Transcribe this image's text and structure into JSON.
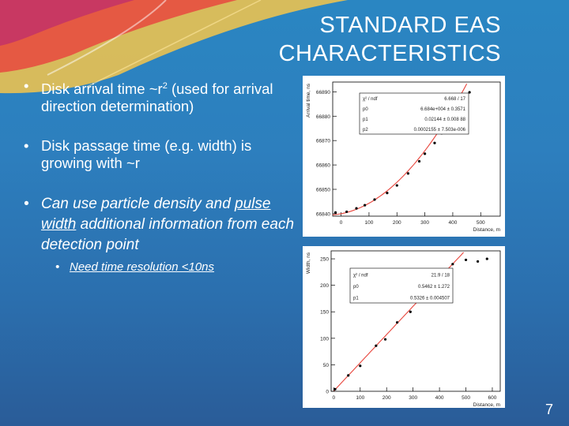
{
  "slide": {
    "title_line1": "STANDARD EAS",
    "title_line2": "CHARACTERISTICS",
    "bullet1_a": "Disk arrival time ~r",
    "bullet1_sup": "2",
    "bullet1_b": " (used for arrival direction determination)",
    "bullet2": "Disk passage time (e.g. width) is growing with ~r",
    "bullet3_a": "Can use particle density and ",
    "bullet3_u": "pulse width",
    "bullet3_b": " additional information from each detection point",
    "bullet4": "Need time resolution <10ns",
    "bullet_symbol": "•",
    "page_number": "7"
  },
  "colors": {
    "title": "#ffffff",
    "text": "#ffffff",
    "background_top": "#2a86c2",
    "background_bottom": "#2a5c98",
    "fit_line": "#e8453c",
    "points": "#000000"
  },
  "chart_data": [
    {
      "type": "scatter",
      "ylabel": "Arrival time, ns",
      "xlabel": "Distance, m",
      "xlim": [
        -30,
        570
      ],
      "ylim": [
        66839,
        66894
      ],
      "x_ticks": [
        0,
        100,
        200,
        300,
        400,
        500
      ],
      "x_tick_labels": [
        "0",
        "100",
        "200",
        "300",
        "400",
        "500"
      ],
      "y_ticks": [
        66840,
        66850,
        66860,
        66870,
        66880,
        66890
      ],
      "y_tick_labels": [
        "66840",
        "66850",
        "66860",
        "66870",
        "66880",
        "66890"
      ],
      "stats_box": [
        {
          "name": "χ² / ndf",
          "value": "6.668 / 17"
        },
        {
          "name": "p0",
          "value": "6.684e+004 ± 0.3571"
        },
        {
          "name": "p1",
          "value": "0.02144 ± 0.008 88"
        },
        {
          "name": "p2",
          "value": "0.0002155 ± 7.503e-006"
        }
      ],
      "fit": {
        "p0": 66840,
        "p1": 0.02144,
        "p2": 0.0002155
      },
      "series": [
        {
          "x": [
            -20,
            20,
            55,
            85,
            120,
            165,
            200,
            240,
            280,
            300,
            335,
            360,
            390,
            430,
            460
          ],
          "y": [
            66840.5,
            66840.8,
            66842.2,
            66843.5,
            66845.8,
            66848.5,
            66851.6,
            66856.5,
            66861.5,
            66864.6,
            66869,
            66873,
            66878,
            66883.5,
            66889.8
          ]
        }
      ]
    },
    {
      "type": "scatter",
      "ylabel": "Width, ns",
      "xlabel": "Distance, m",
      "xlim": [
        -10,
        630
      ],
      "ylim": [
        0,
        265
      ],
      "x_ticks": [
        0,
        100,
        200,
        300,
        400,
        500,
        600
      ],
      "x_tick_labels": [
        "0",
        "100",
        "200",
        "300",
        "400",
        "500",
        "600"
      ],
      "y_ticks": [
        0,
        50,
        100,
        150,
        200,
        250
      ],
      "y_tick_labels": [
        "0",
        "50",
        "100",
        "150",
        "200",
        "250"
      ],
      "stats_box": [
        {
          "name": "χ² / ndf",
          "value": "21.9 / 18"
        },
        {
          "name": "p0",
          "value": "0.5462 ± 1.272"
        },
        {
          "name": "p1",
          "value": "0.5326 ± 0.004507"
        }
      ],
      "fit": {
        "p0": 0.5462,
        "p1": 0.5326
      },
      "series": [
        {
          "x": [
            5,
            55,
            100,
            160,
            195,
            240,
            290,
            330,
            370,
            420,
            450,
            500,
            545,
            580
          ],
          "y": [
            4,
            30,
            48,
            86,
            98,
            130,
            150,
            174,
            205,
            225,
            240,
            248,
            245,
            250
          ]
        }
      ]
    }
  ]
}
